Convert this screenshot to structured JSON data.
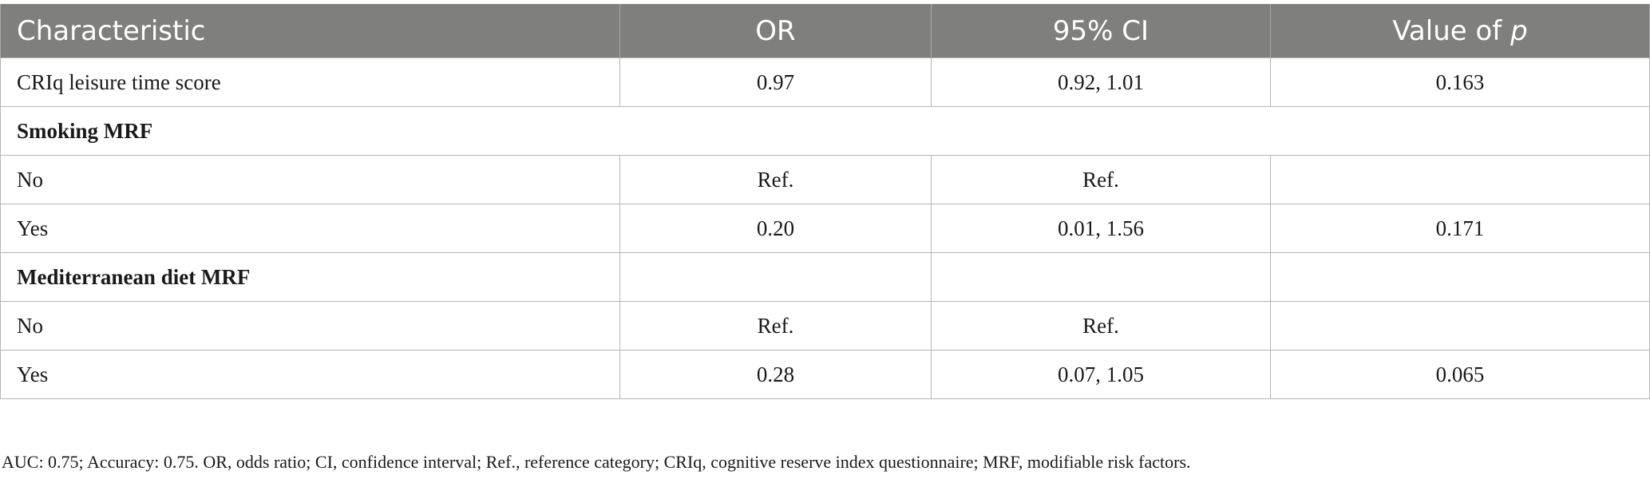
{
  "table": {
    "headers": {
      "characteristic": "Characteristic",
      "or": "OR",
      "ci": "95% CI",
      "p_prefix": "Value of ",
      "p_var": "p"
    },
    "rows": [
      {
        "label": "CRIq leisure time score",
        "or": "0.97",
        "ci": "0.92, 1.01",
        "p": "0.163"
      },
      {
        "label": "Smoking MRF",
        "section": true
      },
      {
        "label": "No",
        "or": "Ref.",
        "ci": "Ref.",
        "p": ""
      },
      {
        "label": "Yes",
        "or": "0.20",
        "ci": "0.01, 1.56",
        "p": "0.171"
      },
      {
        "label": "Mediterranean diet MRF",
        "section": true
      },
      {
        "label": "No",
        "or": "Ref.",
        "ci": "Ref.",
        "p": ""
      },
      {
        "label": "Yes",
        "or": "0.28",
        "ci": "0.07, 1.05",
        "p": "0.065"
      }
    ]
  },
  "footnote": "AUC: 0.75; Accuracy: 0.75. OR, odds ratio; CI, confidence interval; Ref., reference category; CRIq, cognitive reserve index questionnaire; MRF, modifiable risk factors."
}
